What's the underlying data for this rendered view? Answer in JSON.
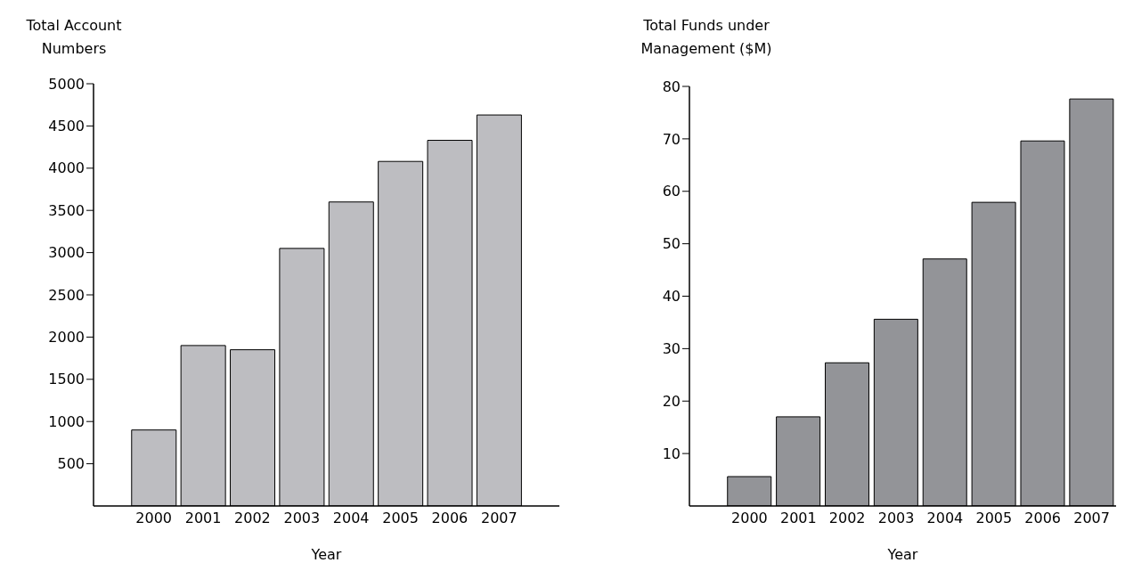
{
  "chart_data": [
    {
      "type": "bar",
      "xlabel": "Year",
      "ylabel": "Total Account Numbers",
      "categories": [
        "2000",
        "2001",
        "2002",
        "2003",
        "2004",
        "2005",
        "2006",
        "2007"
      ],
      "values": [
        900,
        1900,
        1850,
        3050,
        3600,
        4080,
        4330,
        4630
      ],
      "color": "#bdbdc1",
      "ylim": [
        0,
        5000
      ],
      "yticks": [
        500,
        1000,
        1500,
        2000,
        2500,
        3000,
        3500,
        4000,
        4500,
        5000
      ]
    },
    {
      "type": "bar",
      "xlabel": "Year",
      "ylabel": "Total Funds under Management ($M)",
      "categories": [
        "2000",
        "2001",
        "2002",
        "2003",
        "2004",
        "2005",
        "2006",
        "2007"
      ],
      "values": [
        5.6,
        17,
        27.3,
        35.6,
        47.1,
        57.9,
        69.6,
        77.6
      ],
      "color": "#939498",
      "ylim": [
        0,
        80
      ],
      "yticks": [
        10,
        20,
        30,
        40,
        50,
        60,
        70,
        80
      ]
    }
  ]
}
